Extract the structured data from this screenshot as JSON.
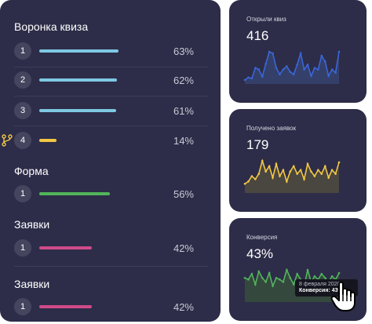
{
  "funnel": {
    "title": "Воронка квиза",
    "steps": [
      {
        "number": "1",
        "percent": "63%",
        "value": 0.63,
        "color": "#7ec8e3"
      },
      {
        "number": "2",
        "percent": "62%",
        "value": 0.62,
        "color": "#7ec8e3"
      },
      {
        "number": "3",
        "percent": "61%",
        "value": 0.61,
        "color": "#7ec8e3"
      },
      {
        "number": "4",
        "percent": "14%",
        "value": 0.14,
        "color": "#f2c744",
        "icon": "branch-icon"
      }
    ]
  },
  "form": {
    "title": "Форма",
    "steps": [
      {
        "number": "1",
        "percent": "56%",
        "value": 0.56,
        "color": "#52b45a"
      }
    ]
  },
  "applications_a": {
    "title": "Заявки",
    "steps": [
      {
        "number": "1",
        "percent": "42%",
        "value": 0.42,
        "color": "#d04a8a"
      }
    ]
  },
  "applications_b": {
    "title": "Заявки",
    "steps": [
      {
        "number": "1",
        "percent": "42%",
        "value": 0.42,
        "color": "#d04a8a"
      }
    ]
  },
  "stats": [
    {
      "label": "Открыли квиз",
      "value": "416",
      "color": "#3a66d8",
      "fill": "#34406a",
      "series": [
        5,
        8,
        7,
        20,
        18,
        9,
        25,
        40,
        38,
        20,
        12,
        18,
        22,
        15,
        12,
        24,
        38,
        18,
        24,
        10,
        20,
        18,
        35,
        28,
        10,
        18,
        14,
        40
      ]
    },
    {
      "label": "Получено заявок",
      "value": "179",
      "color": "#f2c744",
      "fill": "#4a4640",
      "series": [
        12,
        15,
        22,
        18,
        25,
        42,
        28,
        35,
        20,
        38,
        22,
        30,
        15,
        28,
        35,
        25,
        30,
        18,
        38,
        28,
        22,
        30,
        25,
        35,
        20,
        30,
        25,
        40
      ]
    },
    {
      "label": "Конверсия",
      "value": "43%",
      "color": "#52b45a",
      "fill": "#35483e",
      "series": [
        30,
        28,
        35,
        22,
        38,
        30,
        25,
        36,
        20,
        30,
        28,
        25,
        40,
        30,
        22,
        35,
        28,
        20,
        40,
        25,
        32,
        28,
        35,
        30,
        25,
        32,
        28,
        36
      ]
    }
  ],
  "tooltip": {
    "date": "8 февраля 2020",
    "label": "Конверсия:",
    "value": "43%"
  },
  "icons": {
    "cursor": "hand-pointer-icon",
    "branch": "branch-icon"
  }
}
